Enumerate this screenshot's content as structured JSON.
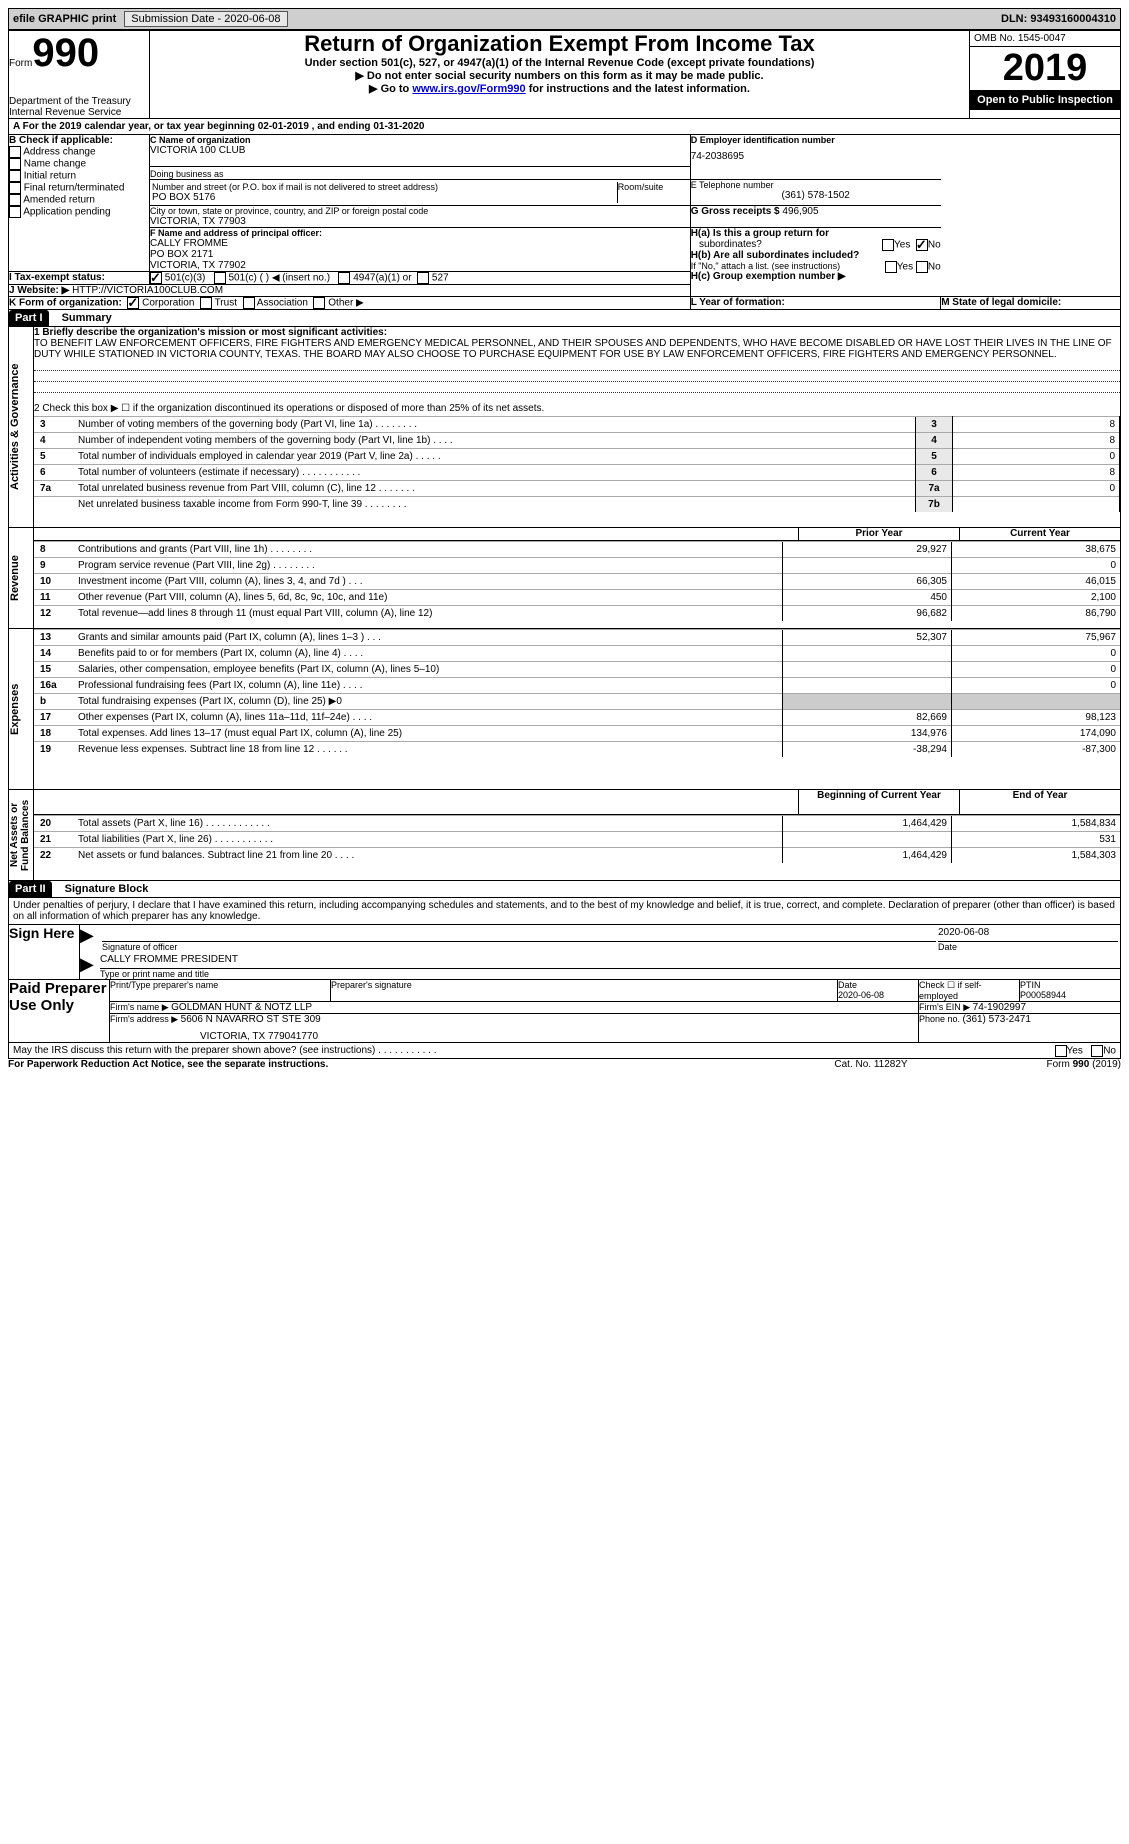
{
  "topbar": {
    "efile": "efile GRAPHIC print",
    "submission_label": "Submission Date - 2020-06-08",
    "dln_label": "DLN: 93493160004310"
  },
  "header": {
    "form_word": "Form",
    "form_number": "990",
    "dept": "Department of the Treasury\nInternal Revenue Service",
    "title": "Return of Organization Exempt From Income Tax",
    "subtitle1": "Under section 501(c), 527, or 4947(a)(1) of the Internal Revenue Code (except private foundations)",
    "subtitle2": "▶ Do not enter social security numbers on this form as it may be made public.",
    "subtitle3_pre": "▶ Go to ",
    "subtitle3_link": "www.irs.gov/Form990",
    "subtitle3_post": " for instructions and the latest information.",
    "omb": "OMB No. 1545-0047",
    "year": "2019",
    "open": "Open to Public Inspection"
  },
  "periodline": "A  For the 2019 calendar year, or tax year beginning 02-01-2019   , and ending 01-31-2020",
  "boxB": {
    "label": "B Check if applicable:",
    "items": [
      "Address change",
      "Name change",
      "Initial return",
      "Final return/terminated",
      "Amended return",
      "Application pending"
    ]
  },
  "boxC": {
    "name_label": "C Name of organization",
    "name": "VICTORIA 100 CLUB",
    "dba_label": "Doing business as",
    "street_label": "Number and street (or P.O. box if mail is not delivered to street address)",
    "street": "PO BOX 5176",
    "room_label": "Room/suite",
    "city_label": "City or town, state or province, country, and ZIP or foreign postal code",
    "city": "VICTORIA, TX  77903"
  },
  "boxD": {
    "label": "D Employer identification number",
    "value": "74-2038695"
  },
  "boxE": {
    "label": "E Telephone number",
    "value": "(361) 578-1502"
  },
  "boxG": {
    "label": "G Gross receipts $ ",
    "value": "496,905"
  },
  "boxF": {
    "label": "F  Name and address of principal officer:",
    "name": "CALLY FROMME",
    "street": "PO BOX 2171",
    "city": "VICTORIA, TX  77902"
  },
  "boxH": {
    "a_pre": "H(a)  Is this a group return for",
    "a_sub": "subordinates?",
    "b_pre": "H(b)  Are all subordinates included?",
    "note": "If \"No,\" attach a list. (see instructions)",
    "c": "H(c)  Group exemption number ▶",
    "yes": "Yes",
    "no": "No"
  },
  "boxI": {
    "label": "I  Tax-exempt status:",
    "opts": [
      "501(c)(3)",
      "501(c) (  ) ◀ (insert no.)",
      "4947(a)(1) or",
      "527"
    ]
  },
  "boxJ": {
    "label": "J  Website: ▶ ",
    "value": "HTTP://VICTORIA100CLUB.COM"
  },
  "boxK": {
    "label": "K Form of organization:",
    "opts": [
      "Corporation",
      "Trust",
      "Association",
      "Other ▶"
    ]
  },
  "boxL": "L Year of formation:",
  "boxM": "M State of legal domicile:",
  "part1": {
    "hdr": "Part I",
    "title": "Summary",
    "l1_label": "1  Briefly describe the organization's mission or most significant activities:",
    "l1_text": "TO BENEFIT LAW ENFORCEMENT OFFICERS, FIRE FIGHTERS AND EMERGENCY MEDICAL PERSONNEL, AND THEIR SPOUSES AND DEPENDENTS, WHO HAVE BECOME DISABLED OR HAVE LOST THEIR LIVES IN THE LINE OF DUTY WHILE STATIONED IN VICTORIA COUNTY, TEXAS. THE BOARD MAY ALSO CHOOSE TO PURCHASE EQUIPMENT FOR USE BY LAW ENFORCEMENT OFFICERS, FIRE FIGHTERS AND EMERGENCY PERSONNEL.",
    "l2": "2   Check this box ▶ ☐  if the organization discontinued its operations or disposed of more than 25% of its net assets.",
    "lines_ag": [
      {
        "n": "3",
        "t": "Number of voting members of the governing body (Part VI, line 1a)  .   .   .   .   .   .   .   .",
        "box": "3",
        "v": "8"
      },
      {
        "n": "4",
        "t": "Number of independent voting members of the governing body (Part VI, line 1b)   .   .   .   .",
        "box": "4",
        "v": "8"
      },
      {
        "n": "5",
        "t": "Total number of individuals employed in calendar year 2019 (Part V, line 2a)   .   .   .   .   .",
        "box": "5",
        "v": "0"
      },
      {
        "n": "6",
        "t": "Total number of volunteers (estimate if necessary)   .   .   .   .   .   .   .   .   .   .   .",
        "box": "6",
        "v": "8"
      },
      {
        "n": "7a",
        "t": "Total unrelated business revenue from Part VIII, column (C), line 12   .   .   .   .   .   .   .",
        "box": "7a",
        "v": "0"
      },
      {
        "n": "",
        "t": "Net unrelated business taxable income from Form 990-T, line 39   .   .   .   .   .   .   .   .",
        "box": "7b",
        "v": ""
      }
    ],
    "col_prior": "Prior Year",
    "col_current": "Current Year",
    "rev_rows": [
      {
        "n": "8",
        "t": "Contributions and grants (Part VIII, line 1h)   .   .   .   .   .   .   .   .",
        "p": "29,927",
        "c": "38,675"
      },
      {
        "n": "9",
        "t": "Program service revenue (Part VIII, line 2g)   .   .   .   .   .   .   .   .",
        "p": "",
        "c": "0"
      },
      {
        "n": "10",
        "t": "Investment income (Part VIII, column (A), lines 3, 4, and 7d )   .   .   .",
        "p": "66,305",
        "c": "46,015"
      },
      {
        "n": "11",
        "t": "Other revenue (Part VIII, column (A), lines 5, 6d, 8c, 9c, 10c, and 11e)",
        "p": "450",
        "c": "2,100"
      },
      {
        "n": "12",
        "t": "Total revenue—add lines 8 through 11 (must equal Part VIII, column (A), line 12)",
        "p": "96,682",
        "c": "86,790"
      }
    ],
    "exp_rows": [
      {
        "n": "13",
        "t": "Grants and similar amounts paid (Part IX, column (A), lines 1–3 )   .   .   .",
        "p": "52,307",
        "c": "75,967"
      },
      {
        "n": "14",
        "t": "Benefits paid to or for members (Part IX, column (A), line 4)   .   .   .   .",
        "p": "",
        "c": "0"
      },
      {
        "n": "15",
        "t": "Salaries, other compensation, employee benefits (Part IX, column (A), lines 5–10)",
        "p": "",
        "c": "0"
      },
      {
        "n": "16a",
        "t": "Professional fundraising fees (Part IX, column (A), line 11e)   .   .   .   .",
        "p": "",
        "c": "0"
      },
      {
        "n": "b",
        "t": "Total fundraising expenses (Part IX, column (D), line 25) ▶0",
        "p": null,
        "c": null
      },
      {
        "n": "17",
        "t": "Other expenses (Part IX, column (A), lines 11a–11d, 11f–24e)   .   .   .   .",
        "p": "82,669",
        "c": "98,123"
      },
      {
        "n": "18",
        "t": "Total expenses. Add lines 13–17 (must equal Part IX, column (A), line 25)",
        "p": "134,976",
        "c": "174,090"
      },
      {
        "n": "19",
        "t": "Revenue less expenses. Subtract line 18 from line 12   .   .   .   .   .   .",
        "p": "-38,294",
        "c": "-87,300"
      }
    ],
    "col_begin": "Beginning of Current Year",
    "col_end": "End of Year",
    "na_rows": [
      {
        "n": "20",
        "t": "Total assets (Part X, line 16)   .   .   .   .   .   .   .   .   .   .   .   .",
        "p": "1,464,429",
        "c": "1,584,834"
      },
      {
        "n": "21",
        "t": "Total liabilities (Part X, line 26)   .   .   .   .   .   .   .   .   .   .   .",
        "p": "",
        "c": "531"
      },
      {
        "n": "22",
        "t": "Net assets or fund balances. Subtract line 21 from line 20   .   .   .   .",
        "p": "1,464,429",
        "c": "1,584,303"
      }
    ]
  },
  "sections": {
    "ag": "Activities & Governance",
    "rev": "Revenue",
    "exp": "Expenses",
    "na": "Net Assets or Fund Balances"
  },
  "part2": {
    "hdr": "Part II",
    "title": "Signature Block",
    "decl": "Under penalties of perjury, I declare that I have examined this return, including accompanying schedules and statements, and to the best of my knowledge and belief, it is true, correct, and complete. Declaration of preparer (other than officer) is based on all information of which preparer has any knowledge.",
    "sign_here": "Sign Here",
    "sig_officer": "Signature of officer",
    "sig_date": "2020-06-08",
    "date_lbl": "Date",
    "officer_name": "CALLY FROMME  PRESIDENT",
    "type_name": "Type or print name and title",
    "paid": "Paid Preparer Use Only",
    "ppn": "Print/Type preparer's name",
    "psig": "Preparer's signature",
    "pdate_lbl": "Date",
    "pdate": "2020-06-08",
    "check_self": "Check ☐ if self-employed",
    "ptin_lbl": "PTIN",
    "ptin": "P00058944",
    "firm_name_lbl": "Firm's name    ▶ ",
    "firm_name": "GOLDMAN HUNT & NOTZ LLP",
    "firm_ein_lbl": "Firm's EIN ▶ ",
    "firm_ein": "74-1902997",
    "firm_addr_lbl": "Firm's address ▶ ",
    "firm_addr1": "5606 N NAVARRO ST STE 309",
    "firm_addr2": "VICTORIA, TX  779041770",
    "phone_lbl": "Phone no. ",
    "phone": "(361) 573-2471",
    "discuss": "May the IRS discuss this return with the preparer shown above? (see instructions)   .   .   .   .   .   .   .   .   .   .   .",
    "yes": "Yes",
    "no": "No"
  },
  "footer": {
    "pra": "For Paperwork Reduction Act Notice, see the separate instructions.",
    "cat": "Cat. No. 11282Y",
    "form": "Form 990 (2019)"
  }
}
